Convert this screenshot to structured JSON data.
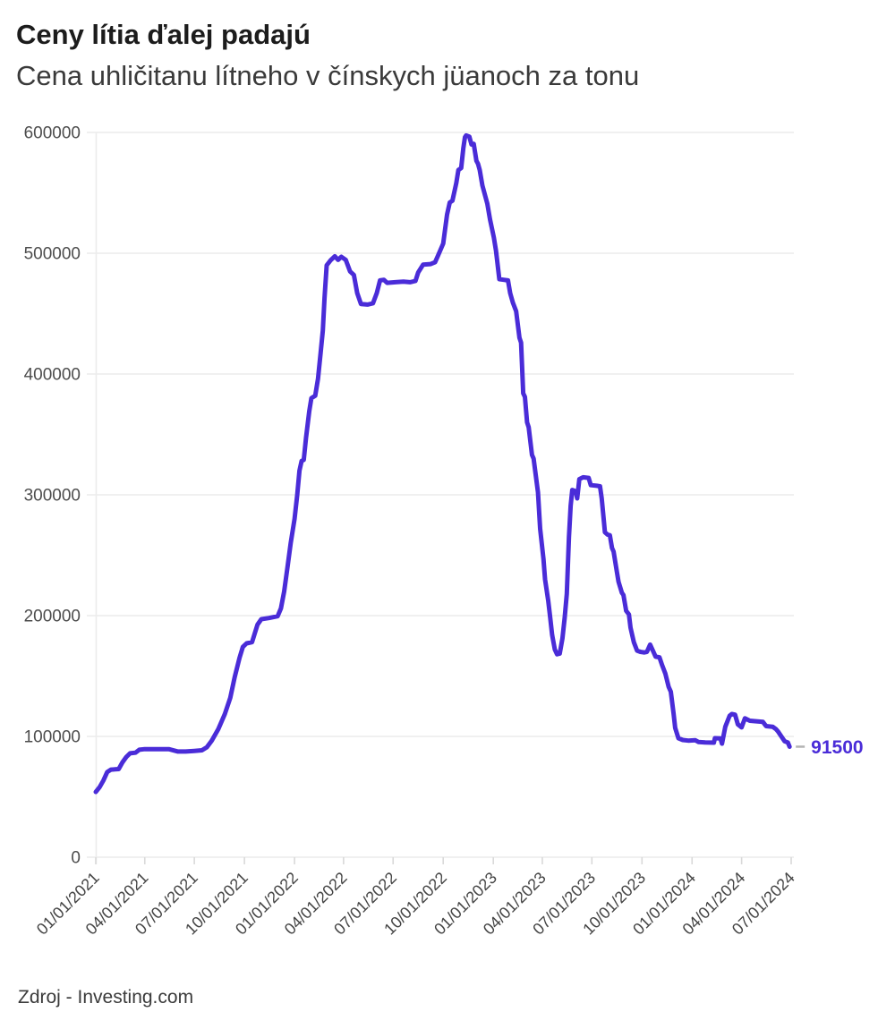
{
  "header": {
    "title": "Ceny lítia ďalej padajú",
    "subtitle": "Cena uhličitanu lítneho v čínskych jüanoch za tonu"
  },
  "footer": {
    "source": "Zdroj - Investing.com"
  },
  "chart_data": {
    "type": "line",
    "title": "Ceny lítia ďalej padajú",
    "subtitle": "Cena uhličitanu lítneho v čínskych jüanoch za tonu",
    "xlabel": "",
    "ylabel": "",
    "ylim": [
      0,
      600000
    ],
    "xlim": [
      "2021-01-01",
      "2024-07-01"
    ],
    "grid": "horizontal",
    "legend": "none",
    "line_color": "#4A2CD8",
    "grid_color": "#ececec",
    "tick_color": "#d9d9d9",
    "marker_dash_color": "#b3b3b3",
    "end_label": "91500",
    "last_value": 91500,
    "y_ticks": [
      0,
      100000,
      200000,
      300000,
      400000,
      500000,
      600000
    ],
    "x_tick_labels": [
      "01/01/2021",
      "04/01/2021",
      "07/01/2021",
      "10/01/2021",
      "01/01/2022",
      "04/01/2022",
      "07/01/2022",
      "10/01/2022",
      "01/01/2023",
      "04/01/2023",
      "07/01/2023",
      "10/01/2023",
      "01/01/2024",
      "04/01/2024",
      "07/01/2024"
    ],
    "points": [
      [
        "2021-01-01",
        54000
      ],
      [
        "2021-01-08",
        58000
      ],
      [
        "2021-01-15",
        63500
      ],
      [
        "2021-01-22",
        70500
      ],
      [
        "2021-01-29",
        72500
      ],
      [
        "2021-02-12",
        73000
      ],
      [
        "2021-02-19",
        78500
      ],
      [
        "2021-02-26",
        83000
      ],
      [
        "2021-03-05",
        86000
      ],
      [
        "2021-03-15",
        86500
      ],
      [
        "2021-03-22",
        89000
      ],
      [
        "2021-04-01",
        89500
      ],
      [
        "2021-04-20",
        89500
      ],
      [
        "2021-05-15",
        89500
      ],
      [
        "2021-06-01",
        87500
      ],
      [
        "2021-06-15",
        87500
      ],
      [
        "2021-07-01",
        88000
      ],
      [
        "2021-07-15",
        88500
      ],
      [
        "2021-07-24",
        91000
      ],
      [
        "2021-08-02",
        96500
      ],
      [
        "2021-08-14",
        106000
      ],
      [
        "2021-08-26",
        118500
      ],
      [
        "2021-09-05",
        132000
      ],
      [
        "2021-09-13",
        149000
      ],
      [
        "2021-09-22",
        165000
      ],
      [
        "2021-09-28",
        174000
      ],
      [
        "2021-10-05",
        177000
      ],
      [
        "2021-10-15",
        178000
      ],
      [
        "2021-10-19",
        184000
      ],
      [
        "2021-10-25",
        192500
      ],
      [
        "2021-11-01",
        197000
      ],
      [
        "2021-11-15",
        198000
      ],
      [
        "2021-12-01",
        199500
      ],
      [
        "2021-12-07",
        206000
      ],
      [
        "2021-12-13",
        220000
      ],
      [
        "2021-12-19",
        240000
      ],
      [
        "2021-12-25",
        260000
      ],
      [
        "2022-01-01",
        280000
      ],
      [
        "2022-01-06",
        300000
      ],
      [
        "2022-01-10",
        320000
      ],
      [
        "2022-01-14",
        328000
      ],
      [
        "2022-01-18",
        329000
      ],
      [
        "2022-01-22",
        347000
      ],
      [
        "2022-01-28",
        369000
      ],
      [
        "2022-02-01",
        380000
      ],
      [
        "2022-02-08",
        382000
      ],
      [
        "2022-02-13",
        396000
      ],
      [
        "2022-02-18",
        418000
      ],
      [
        "2022-02-22",
        436000
      ],
      [
        "2022-02-25",
        463000
      ],
      [
        "2022-03-01",
        490000
      ],
      [
        "2022-03-08",
        494000
      ],
      [
        "2022-03-16",
        497500
      ],
      [
        "2022-03-22",
        494500
      ],
      [
        "2022-03-28",
        497000
      ],
      [
        "2022-04-05",
        494500
      ],
      [
        "2022-04-13",
        485000
      ],
      [
        "2022-04-20",
        482000
      ],
      [
        "2022-04-26",
        467000
      ],
      [
        "2022-05-03",
        458000
      ],
      [
        "2022-05-15",
        457500
      ],
      [
        "2022-05-25",
        458500
      ],
      [
        "2022-06-01",
        467000
      ],
      [
        "2022-06-07",
        477500
      ],
      [
        "2022-06-14",
        478000
      ],
      [
        "2022-06-20",
        475500
      ],
      [
        "2022-07-05",
        476000
      ],
      [
        "2022-07-20",
        476500
      ],
      [
        "2022-08-01",
        476000
      ],
      [
        "2022-08-11",
        477000
      ],
      [
        "2022-08-16",
        484000
      ],
      [
        "2022-08-25",
        490500
      ],
      [
        "2022-09-08",
        491000
      ],
      [
        "2022-09-16",
        492500
      ],
      [
        "2022-09-22",
        498500
      ],
      [
        "2022-10-01",
        508000
      ],
      [
        "2022-10-08",
        532000
      ],
      [
        "2022-10-13",
        542000
      ],
      [
        "2022-10-18",
        543500
      ],
      [
        "2022-10-25",
        558000
      ],
      [
        "2022-10-29",
        569000
      ],
      [
        "2022-11-03",
        570500
      ],
      [
        "2022-11-07",
        587000
      ],
      [
        "2022-11-10",
        596000
      ],
      [
        "2022-11-12",
        597500
      ],
      [
        "2022-11-18",
        596500
      ],
      [
        "2022-11-22",
        590000
      ],
      [
        "2022-11-26",
        590500
      ],
      [
        "2022-12-01",
        576500
      ],
      [
        "2022-12-04",
        574000
      ],
      [
        "2022-12-07",
        569000
      ],
      [
        "2022-12-12",
        556000
      ],
      [
        "2022-12-21",
        541000
      ],
      [
        "2022-12-26",
        528000
      ],
      [
        "2023-01-02",
        513000
      ],
      [
        "2023-01-06",
        502000
      ],
      [
        "2023-01-12",
        478500
      ],
      [
        "2023-01-20",
        478000
      ],
      [
        "2023-01-28",
        477500
      ],
      [
        "2023-02-01",
        467000
      ],
      [
        "2023-02-06",
        459000
      ],
      [
        "2023-02-12",
        452000
      ],
      [
        "2023-02-18",
        430000
      ],
      [
        "2023-02-21",
        426000
      ],
      [
        "2023-02-25",
        384000
      ],
      [
        "2023-02-28",
        381000
      ],
      [
        "2023-03-04",
        360000
      ],
      [
        "2023-03-07",
        356000
      ],
      [
        "2023-03-13",
        333000
      ],
      [
        "2023-03-16",
        330000
      ],
      [
        "2023-03-24",
        302000
      ],
      [
        "2023-03-28",
        272000
      ],
      [
        "2023-04-03",
        247000
      ],
      [
        "2023-04-06",
        230000
      ],
      [
        "2023-04-09",
        221000
      ],
      [
        "2023-04-12",
        212000
      ],
      [
        "2023-04-15",
        200000
      ],
      [
        "2023-04-19",
        184000
      ],
      [
        "2023-04-24",
        172000
      ],
      [
        "2023-04-28",
        168000
      ],
      [
        "2023-05-03",
        168500
      ],
      [
        "2023-05-08",
        181000
      ],
      [
        "2023-05-12",
        198000
      ],
      [
        "2023-05-16",
        218000
      ],
      [
        "2023-05-20",
        265000
      ],
      [
        "2023-05-23",
        291000
      ],
      [
        "2023-05-26",
        304000
      ],
      [
        "2023-06-01",
        303000
      ],
      [
        "2023-06-04",
        297000
      ],
      [
        "2023-06-08",
        313000
      ],
      [
        "2023-06-15",
        314500
      ],
      [
        "2023-06-25",
        314000
      ],
      [
        "2023-06-29",
        308000
      ],
      [
        "2023-07-10",
        307500
      ],
      [
        "2023-07-16",
        307000
      ],
      [
        "2023-07-19",
        297000
      ],
      [
        "2023-07-25",
        269000
      ],
      [
        "2023-07-30",
        267000
      ],
      [
        "2023-08-03",
        266500
      ],
      [
        "2023-08-07",
        256000
      ],
      [
        "2023-08-10",
        253000
      ],
      [
        "2023-08-16",
        236000
      ],
      [
        "2023-08-19",
        228000
      ],
      [
        "2023-08-25",
        219000
      ],
      [
        "2023-08-28",
        217000
      ],
      [
        "2023-09-02",
        204000
      ],
      [
        "2023-09-07",
        201000
      ],
      [
        "2023-09-10",
        190000
      ],
      [
        "2023-09-16",
        178000
      ],
      [
        "2023-09-22",
        171000
      ],
      [
        "2023-09-28",
        170000
      ],
      [
        "2023-10-05",
        169500
      ],
      [
        "2023-10-10",
        170000
      ],
      [
        "2023-10-16",
        176000
      ],
      [
        "2023-10-22",
        170000
      ],
      [
        "2023-10-26",
        166000
      ],
      [
        "2023-11-02",
        165500
      ],
      [
        "2023-11-07",
        159000
      ],
      [
        "2023-11-13",
        152000
      ],
      [
        "2023-11-19",
        141000
      ],
      [
        "2023-11-23",
        137000
      ],
      [
        "2023-11-28",
        119000
      ],
      [
        "2023-12-01",
        107000
      ],
      [
        "2023-12-07",
        98500
      ],
      [
        "2023-12-15",
        97000
      ],
      [
        "2023-12-25",
        96500
      ],
      [
        "2024-01-07",
        96800
      ],
      [
        "2024-01-13",
        95300
      ],
      [
        "2024-01-25",
        95000
      ],
      [
        "2024-02-10",
        94800
      ],
      [
        "2024-02-12",
        98500
      ],
      [
        "2024-02-22",
        98300
      ],
      [
        "2024-02-25",
        94000
      ],
      [
        "2024-03-02",
        108000
      ],
      [
        "2024-03-10",
        117000
      ],
      [
        "2024-03-14",
        118500
      ],
      [
        "2024-03-20",
        118000
      ],
      [
        "2024-03-25",
        110000
      ],
      [
        "2024-04-01",
        107500
      ],
      [
        "2024-04-07",
        115000
      ],
      [
        "2024-04-16",
        113000
      ],
      [
        "2024-04-28",
        112500
      ],
      [
        "2024-05-10",
        112000
      ],
      [
        "2024-05-16",
        108500
      ],
      [
        "2024-05-28",
        108000
      ],
      [
        "2024-06-03",
        106000
      ],
      [
        "2024-06-07",
        104000
      ],
      [
        "2024-06-13",
        100000
      ],
      [
        "2024-06-19",
        96000
      ],
      [
        "2024-06-25",
        95000
      ],
      [
        "2024-06-28",
        91500
      ]
    ]
  }
}
